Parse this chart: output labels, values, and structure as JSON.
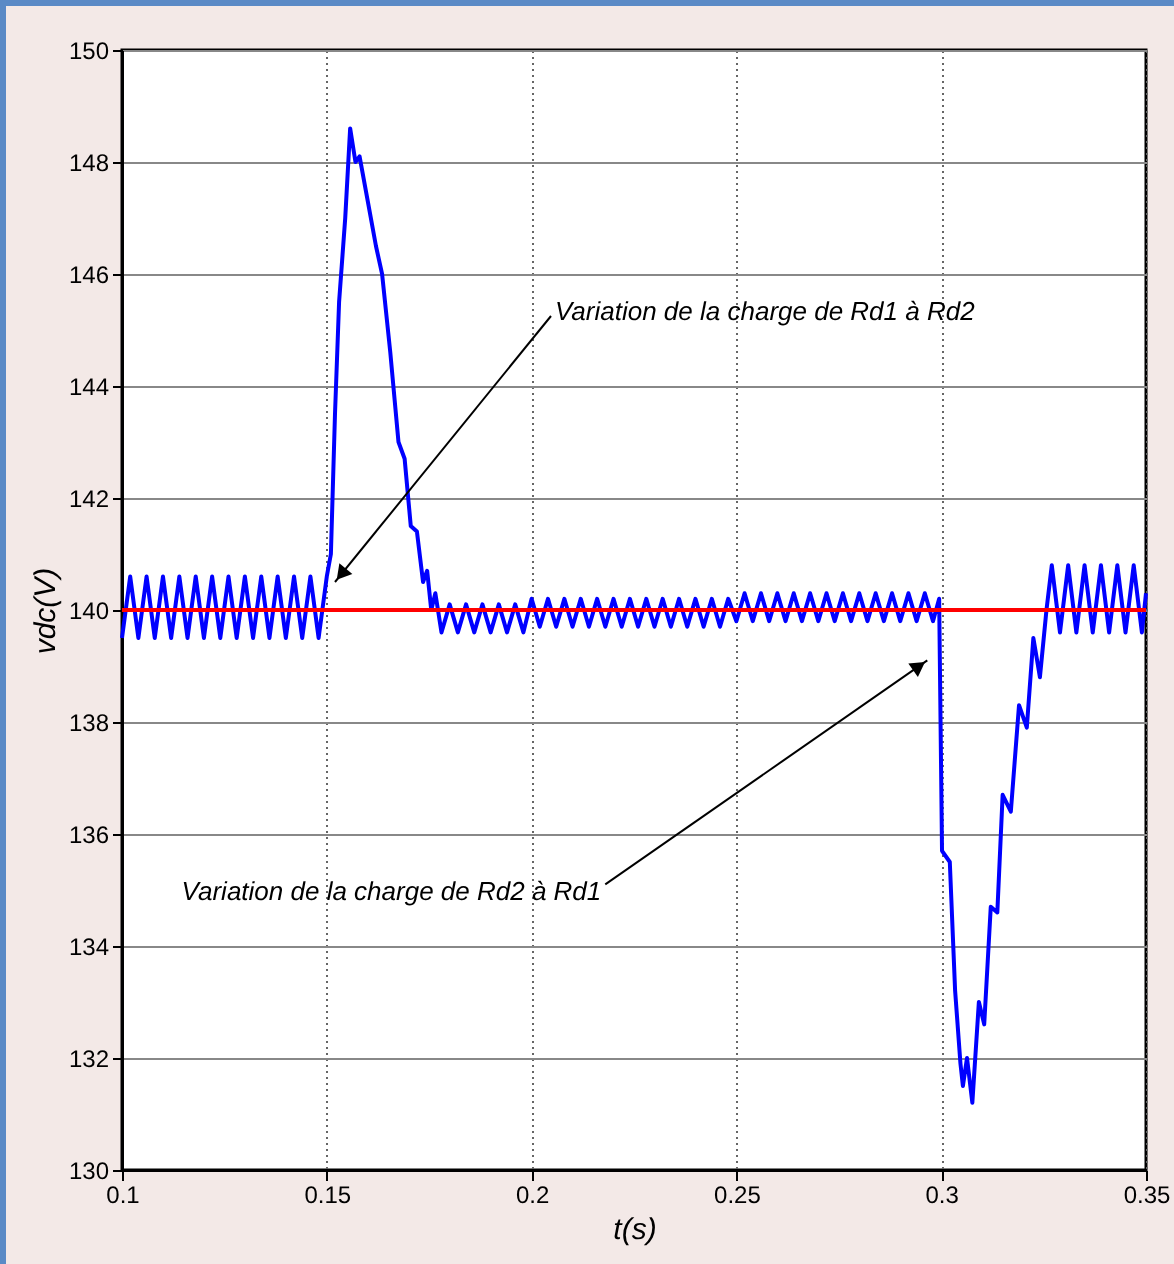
{
  "chart_data": {
    "type": "line",
    "xlabel": "t(s)",
    "ylabel": "vdc(V)",
    "xlim": [
      0.1,
      0.35
    ],
    "xticks": [
      0.1,
      0.15,
      0.2,
      0.25,
      0.3,
      0.35
    ],
    "ylim": [
      130,
      150
    ],
    "yticks": [
      130,
      132,
      134,
      136,
      138,
      140,
      142,
      144,
      146,
      148,
      150
    ],
    "grid": true,
    "line_style": "solid",
    "series": [
      {
        "color": "#0000ff",
        "x": [
          0.1,
          0.102,
          0.104,
          0.106,
          0.108,
          0.11,
          0.112,
          0.114,
          0.116,
          0.118,
          0.12,
          0.122,
          0.124,
          0.126,
          0.128,
          0.13,
          0.132,
          0.134,
          0.136,
          0.138,
          0.14,
          0.142,
          0.144,
          0.146,
          0.148,
          0.15,
          0.151,
          0.152,
          0.153,
          0.1545,
          0.1557,
          0.157,
          0.158,
          0.16,
          0.162,
          0.1635,
          0.1655,
          0.1675,
          0.169,
          0.1705,
          0.172,
          0.1735,
          0.1745,
          0.1755,
          0.1765,
          0.178,
          0.18,
          0.182,
          0.184,
          0.186,
          0.188,
          0.19,
          0.192,
          0.194,
          0.196,
          0.198,
          0.2,
          0.202,
          0.204,
          0.206,
          0.208,
          0.21,
          0.212,
          0.214,
          0.216,
          0.218,
          0.22,
          0.222,
          0.224,
          0.226,
          0.228,
          0.23,
          0.232,
          0.234,
          0.236,
          0.238,
          0.24,
          0.242,
          0.244,
          0.246,
          0.248,
          0.25,
          0.252,
          0.254,
          0.256,
          0.258,
          0.26,
          0.262,
          0.264,
          0.266,
          0.268,
          0.27,
          0.272,
          0.274,
          0.276,
          0.278,
          0.28,
          0.282,
          0.284,
          0.286,
          0.288,
          0.29,
          0.292,
          0.294,
          0.296,
          0.298,
          0.2995,
          0.3002,
          0.3021,
          0.3034,
          0.3047,
          0.3053,
          0.3063,
          0.3076,
          0.3092,
          0.3105,
          0.3121,
          0.3137,
          0.315,
          0.317,
          0.319,
          0.3209,
          0.3225,
          0.3241,
          0.3257,
          0.327,
          0.329,
          0.331,
          0.333,
          0.335,
          0.337,
          0.339,
          0.341,
          0.343,
          0.345,
          0.347,
          0.349,
          0.35
        ],
        "values": [
          139.5,
          140.6,
          139.5,
          140.6,
          139.5,
          140.6,
          139.5,
          140.6,
          139.5,
          140.6,
          139.5,
          140.6,
          139.5,
          140.6,
          139.5,
          140.6,
          139.5,
          140.6,
          139.5,
          140.6,
          139.5,
          140.6,
          139.5,
          140.6,
          139.5,
          140.6,
          141.0,
          143.5,
          145.5,
          147.0,
          148.6,
          148.0,
          148.1,
          147.3,
          146.5,
          146.0,
          144.6,
          143.0,
          142.7,
          141.5,
          141.4,
          140.5,
          140.7,
          140.0,
          140.3,
          139.6,
          140.1,
          139.6,
          140.1,
          139.6,
          140.1,
          139.6,
          140.1,
          139.6,
          140.1,
          139.6,
          140.2,
          139.7,
          140.2,
          139.7,
          140.2,
          139.7,
          140.2,
          139.7,
          140.2,
          139.7,
          140.2,
          139.7,
          140.2,
          139.7,
          140.2,
          139.7,
          140.2,
          139.7,
          140.2,
          139.7,
          140.2,
          139.7,
          140.2,
          139.7,
          140.2,
          139.8,
          140.3,
          139.8,
          140.3,
          139.8,
          140.3,
          139.8,
          140.3,
          139.8,
          140.3,
          139.8,
          140.3,
          139.8,
          140.3,
          139.8,
          140.3,
          139.8,
          140.3,
          139.8,
          140.3,
          139.8,
          140.3,
          139.8,
          140.3,
          139.8,
          140.2,
          135.7,
          135.5,
          133.2,
          131.9,
          131.5,
          132.0,
          131.2,
          133.0,
          132.6,
          134.7,
          134.6,
          136.7,
          136.4,
          138.3,
          137.9,
          139.5,
          138.8,
          140.0,
          140.8,
          139.6,
          140.8,
          139.6,
          140.8,
          139.6,
          140.8,
          139.6,
          140.8,
          139.6,
          140.8,
          139.6,
          140.3
        ]
      }
    ],
    "ref_lines": [
      {
        "axis": "y",
        "value": 140,
        "color": "#ff0000"
      }
    ],
    "annotations": [
      {
        "text": "Variation de la charge de Rd1 à Rd2",
        "x": 0.152,
        "y": 140.5
      },
      {
        "text": "Variation de la charge de Rd2 à Rd1",
        "x": 0.2966,
        "y": 139.1
      }
    ]
  }
}
